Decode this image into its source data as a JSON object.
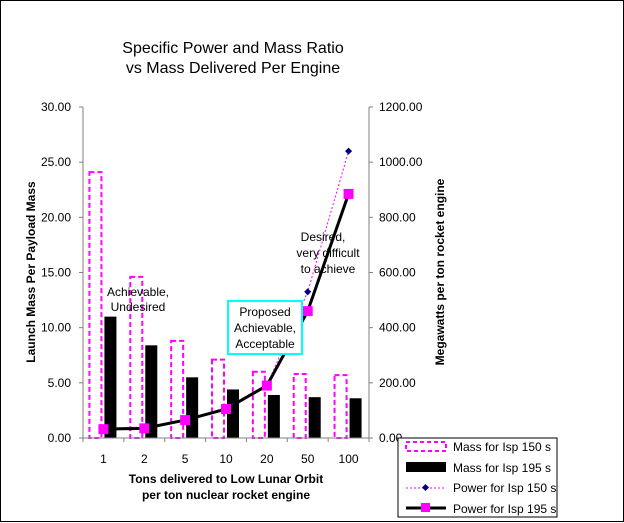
{
  "chart_data": {
    "type": "bar",
    "title": [
      "Specific Power and Mass Ratio",
      "vs Mass Delivered Per Engine"
    ],
    "categories": [
      "1",
      "2",
      "5",
      "10",
      "20",
      "50",
      "100"
    ],
    "xlabel": [
      "Tons delivered to Low Lunar Orbit",
      "per ton nuclear rocket engine"
    ],
    "ylabel_left": "Launch Mass Per Payload Mass",
    "ylabel_right": "Megawatts per ton rocket engine",
    "ylim_left": [
      0,
      30
    ],
    "ylim_right": [
      0,
      1200
    ],
    "yticks_left": [
      "0.00",
      "5.00",
      "10.00",
      "15.00",
      "20.00",
      "25.00",
      "30.00"
    ],
    "yticks_right": [
      "0.00",
      "200.00",
      "400.00",
      "600.00",
      "800.00",
      "1000.00",
      "1200.00"
    ],
    "grid": false,
    "legend_position": "bottom-right",
    "series": [
      {
        "name": "Mass for Isp 150 s",
        "type": "bar",
        "axis": "left",
        "color": "#ff00ff",
        "style": "dashed-outline",
        "values": [
          24.1,
          14.6,
          8.8,
          7.1,
          6.0,
          5.8,
          5.7
        ]
      },
      {
        "name": "Mass for Isp 195 s",
        "type": "bar",
        "axis": "left",
        "color": "#000000",
        "style": "solid",
        "values": [
          11.0,
          8.4,
          5.5,
          4.4,
          3.9,
          3.7,
          3.6
        ]
      },
      {
        "name": "Power for Isp 150 s",
        "type": "line",
        "axis": "right",
        "color": "#ff00ff",
        "marker": "diamond",
        "marker_color": "#000080",
        "values": [
          35,
          40,
          65,
          110,
          190,
          530,
          1040
        ]
      },
      {
        "name": "Power for Isp 195 s",
        "type": "line",
        "axis": "right",
        "color": "#000000",
        "marker": "square",
        "marker_color": "#ff00ff",
        "values": [
          32,
          35,
          65,
          105,
          190,
          460,
          885
        ]
      }
    ],
    "annotations": [
      {
        "lines": [
          "Achievable,",
          "Undesired"
        ],
        "boxed": false,
        "box_color": ""
      },
      {
        "lines": [
          "Proposed",
          "Achievable,",
          "Acceptable"
        ],
        "boxed": true,
        "box_color": "#00ffff"
      },
      {
        "lines": [
          "Desired,",
          "very difficult",
          "to achieve"
        ],
        "boxed": false,
        "box_color": ""
      }
    ]
  }
}
